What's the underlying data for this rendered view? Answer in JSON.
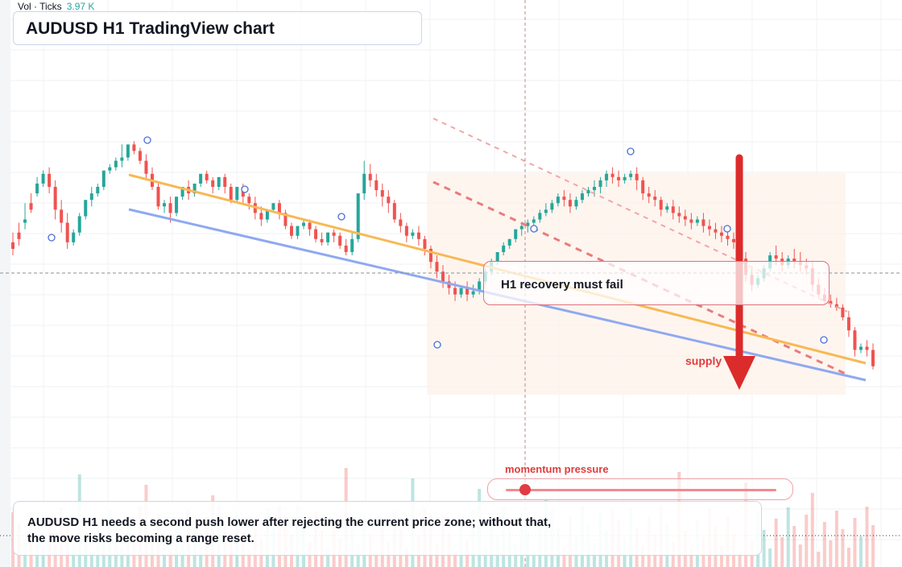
{
  "header": {
    "vol_label": "Vol · Ticks",
    "vol_value": "3.97 K"
  },
  "title": "AUDUSD H1 TradingView chart",
  "annotations": {
    "callout": "H1 recovery must fail",
    "supply": "supply",
    "momentum_label": "momentum pressure",
    "momentum_level": 0.07,
    "bottom_note_line1": "AUDUSD H1 needs a second push lower after rejecting the current price zone; without that,",
    "bottom_note_line2": "the move risks becoming a range reset."
  },
  "colors": {
    "bull": "#26a69a",
    "bear": "#ef5350",
    "orange_line": "#f7b955",
    "blue_line": "#8fa9f0",
    "arrow": "#dc2b2b",
    "zone": "#fdf1e8"
  },
  "chart_data": {
    "type": "candlestick",
    "symbol": "AUDUSD",
    "timeframe": "H1",
    "y_range": [
      0,
      100
    ],
    "candles": [
      [
        43,
        46,
        41,
        39
      ],
      [
        46,
        49,
        44,
        42
      ],
      [
        49,
        55,
        50,
        47
      ],
      [
        55,
        58,
        53,
        52
      ],
      [
        58,
        63,
        61,
        57
      ],
      [
        61,
        65,
        64,
        60
      ],
      [
        64,
        66,
        60,
        58
      ],
      [
        60,
        62,
        53,
        50
      ],
      [
        53,
        56,
        49,
        46
      ],
      [
        49,
        52,
        43,
        41
      ],
      [
        43,
        47,
        46,
        42
      ],
      [
        46,
        52,
        51,
        45
      ],
      [
        51,
        55,
        56,
        50
      ],
      [
        56,
        60,
        58,
        54
      ],
      [
        58,
        61,
        60,
        57
      ],
      [
        60,
        63,
        65,
        59
      ],
      [
        65,
        67,
        66,
        64
      ],
      [
        66,
        69,
        68,
        65
      ],
      [
        68,
        73,
        69,
        66
      ],
      [
        69,
        72,
        73,
        68
      ],
      [
        73,
        74,
        71,
        70
      ],
      [
        71,
        72,
        68,
        67
      ],
      [
        68,
        70,
        64,
        62
      ],
      [
        64,
        66,
        60,
        59
      ],
      [
        60,
        61,
        54,
        53
      ],
      [
        54,
        56,
        55,
        52
      ],
      [
        55,
        57,
        52,
        49
      ],
      [
        52,
        55,
        57,
        51
      ],
      [
        57,
        60,
        60,
        56
      ],
      [
        60,
        62,
        58,
        56
      ],
      [
        58,
        60,
        61,
        57
      ],
      [
        61,
        63,
        64,
        60
      ],
      [
        64,
        65,
        62,
        61
      ],
      [
        62,
        63,
        60,
        58
      ],
      [
        60,
        62,
        63,
        59
      ],
      [
        63,
        64,
        60,
        58
      ],
      [
        60,
        61,
        56,
        55
      ],
      [
        56,
        58,
        60,
        55
      ],
      [
        60,
        61,
        57,
        55
      ],
      [
        57,
        58,
        55,
        53
      ],
      [
        55,
        57,
        52,
        50
      ],
      [
        52,
        54,
        50,
        48
      ],
      [
        50,
        52,
        53,
        49
      ],
      [
        53,
        55,
        55,
        52
      ],
      [
        55,
        56,
        52,
        50
      ],
      [
        52,
        53,
        48,
        47
      ],
      [
        48,
        49,
        45,
        44
      ],
      [
        45,
        47,
        48,
        44
      ],
      [
        48,
        50,
        49,
        47
      ],
      [
        49,
        50,
        47,
        45
      ],
      [
        47,
        48,
        44,
        43
      ],
      [
        44,
        46,
        43,
        42
      ],
      [
        43,
        46,
        46,
        42
      ],
      [
        46,
        47,
        45,
        43
      ],
      [
        45,
        46,
        42,
        41
      ],
      [
        42,
        44,
        40,
        39
      ],
      [
        40,
        46,
        44,
        39
      ],
      [
        44,
        56,
        58,
        43
      ],
      [
        58,
        68,
        64,
        56
      ],
      [
        64,
        67,
        62,
        60
      ],
      [
        62,
        64,
        59,
        57
      ],
      [
        59,
        61,
        57,
        54
      ],
      [
        57,
        59,
        55,
        52
      ],
      [
        55,
        56,
        50,
        49
      ],
      [
        50,
        52,
        48,
        46
      ],
      [
        48,
        49,
        45,
        43
      ],
      [
        45,
        47,
        46,
        44
      ],
      [
        46,
        48,
        44,
        42
      ],
      [
        44,
        45,
        41,
        39
      ],
      [
        41,
        42,
        37,
        35
      ],
      [
        37,
        39,
        34,
        32
      ],
      [
        34,
        36,
        31,
        29
      ],
      [
        31,
        33,
        29,
        27
      ],
      [
        29,
        31,
        27,
        25
      ],
      [
        27,
        29,
        29,
        26
      ],
      [
        29,
        31,
        27,
        25
      ],
      [
        27,
        30,
        28,
        26
      ],
      [
        28,
        32,
        31,
        27
      ],
      [
        31,
        35,
        34,
        30
      ],
      [
        34,
        38,
        37,
        33
      ],
      [
        37,
        40,
        40,
        36
      ],
      [
        40,
        43,
        42,
        39
      ],
      [
        42,
        44,
        44,
        41
      ],
      [
        44,
        47,
        47,
        43
      ],
      [
        47,
        49,
        48,
        45
      ],
      [
        48,
        50,
        49,
        46
      ],
      [
        49,
        51,
        50,
        47
      ],
      [
        50,
        53,
        52,
        49
      ],
      [
        52,
        55,
        53,
        51
      ],
      [
        53,
        56,
        55,
        52
      ],
      [
        55,
        58,
        57,
        54
      ],
      [
        57,
        59,
        56,
        54
      ],
      [
        56,
        58,
        54,
        52
      ],
      [
        54,
        57,
        56,
        53
      ],
      [
        56,
        59,
        58,
        55
      ],
      [
        58,
        60,
        59,
        57
      ],
      [
        59,
        62,
        60,
        57
      ],
      [
        60,
        63,
        62,
        58
      ],
      [
        62,
        65,
        64,
        60
      ],
      [
        64,
        66,
        63,
        61
      ],
      [
        63,
        65,
        62,
        60
      ],
      [
        62,
        64,
        63,
        61
      ],
      [
        63,
        65,
        64,
        62
      ],
      [
        64,
        66,
        62,
        59
      ],
      [
        62,
        63,
        58,
        56
      ],
      [
        58,
        60,
        57,
        55
      ],
      [
        57,
        59,
        56,
        54
      ],
      [
        56,
        57,
        53,
        51
      ],
      [
        53,
        55,
        54,
        52
      ],
      [
        54,
        56,
        52,
        50
      ],
      [
        52,
        54,
        51,
        49
      ],
      [
        51,
        53,
        50,
        48
      ],
      [
        50,
        52,
        49,
        47
      ],
      [
        49,
        51,
        50,
        48
      ],
      [
        50,
        52,
        48,
        46
      ],
      [
        48,
        50,
        47,
        45
      ],
      [
        47,
        49,
        46,
        44
      ],
      [
        46,
        48,
        45,
        43
      ],
      [
        45,
        47,
        44,
        42
      ],
      [
        44,
        46,
        43,
        41
      ],
      [
        43,
        44,
        38,
        36
      ],
      [
        38,
        40,
        33,
        31
      ],
      [
        33,
        35,
        30,
        28
      ],
      [
        30,
        33,
        32,
        29
      ],
      [
        32,
        36,
        35,
        31
      ],
      [
        35,
        40,
        39,
        34
      ],
      [
        39,
        42,
        38,
        36
      ],
      [
        38,
        40,
        36,
        34
      ],
      [
        36,
        39,
        38,
        35
      ],
      [
        38,
        41,
        37,
        35
      ],
      [
        37,
        40,
        36,
        34
      ],
      [
        36,
        38,
        35,
        33
      ],
      [
        35,
        37,
        30,
        28
      ],
      [
        30,
        32,
        27,
        26
      ],
      [
        27,
        29,
        25,
        24
      ],
      [
        25,
        27,
        24,
        23
      ],
      [
        24,
        26,
        23,
        22
      ],
      [
        23,
        24,
        20,
        19
      ],
      [
        20,
        22,
        16,
        14
      ],
      [
        16,
        17,
        10,
        8
      ],
      [
        10,
        12,
        11,
        9
      ],
      [
        11,
        13,
        10,
        8
      ],
      [
        10,
        12,
        5,
        4
      ]
    ]
  }
}
